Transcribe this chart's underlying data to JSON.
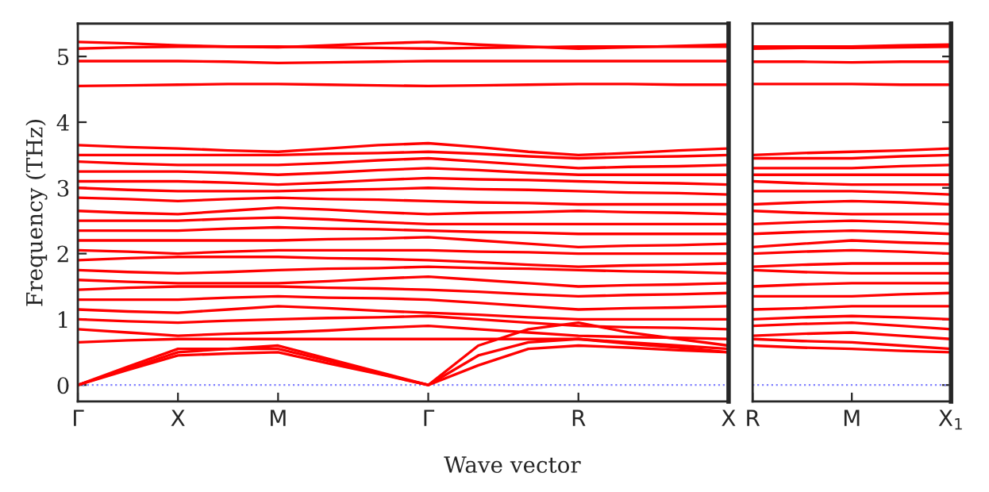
{
  "chart_data": [
    {
      "type": "line",
      "ylabel": "Frequency (THz)",
      "xlabel": "Wave vector",
      "categories": [
        "Γ",
        null,
        "X",
        null,
        "M",
        null,
        null,
        "Γ",
        null,
        null,
        "R",
        null,
        null,
        "X"
      ],
      "ylim": [
        -0.25,
        5.5
      ],
      "yticks": [
        0,
        1,
        2,
        3,
        4,
        5
      ],
      "line_style": "solid",
      "marker": "none",
      "ref_lines": [
        {
          "axis": "y",
          "value": 0,
          "color": "#8080ff",
          "line_style": "dotted"
        }
      ],
      "series": [
        {
          "color": "#ff0000",
          "values": [
            0,
            0.23,
            0.45,
            0.48,
            0.5,
            0.33,
            0.17,
            0,
            0.3,
            0.55,
            0.6,
            0.57,
            0.53,
            0.5
          ]
        },
        {
          "color": "#ff0000",
          "values": [
            0,
            0.28,
            0.55,
            0.55,
            0.55,
            0.37,
            0.18,
            0,
            0.45,
            0.65,
            0.7,
            0.65,
            0.6,
            0.55
          ]
        },
        {
          "color": "#ff0000",
          "values": [
            0,
            0.25,
            0.5,
            0.55,
            0.6,
            0.4,
            0.2,
            0,
            0.6,
            0.85,
            0.95,
            0.8,
            0.7,
            0.6
          ]
        },
        {
          "color": "#ff0000",
          "values": [
            0.65,
            0.68,
            0.7,
            0.7,
            0.7,
            0.7,
            0.7,
            0.7,
            0.7,
            0.7,
            0.7,
            0.63,
            0.57,
            0.5
          ]
        },
        {
          "color": "#ff0000",
          "values": [
            0.85,
            0.8,
            0.75,
            0.78,
            0.8,
            0.83,
            0.87,
            0.9,
            0.85,
            0.8,
            0.75,
            0.73,
            0.72,
            0.7
          ]
        },
        {
          "color": "#ff0000",
          "values": [
            1.0,
            0.97,
            0.95,
            0.98,
            1.0,
            1.02,
            1.03,
            1.05,
            1.0,
            0.95,
            0.9,
            0.88,
            0.87,
            0.85
          ]
        },
        {
          "color": "#ff0000",
          "values": [
            1.15,
            1.12,
            1.1,
            1.15,
            1.2,
            1.17,
            1.13,
            1.1,
            1.07,
            1.03,
            1.0,
            1.0,
            1.0,
            1.0
          ]
        },
        {
          "color": "#ff0000",
          "values": [
            1.3,
            1.3,
            1.3,
            1.33,
            1.35,
            1.33,
            1.32,
            1.3,
            1.25,
            1.2,
            1.15,
            1.17,
            1.18,
            1.2
          ]
        },
        {
          "color": "#ff0000",
          "values": [
            1.45,
            1.48,
            1.5,
            1.5,
            1.5,
            1.48,
            1.47,
            1.45,
            1.42,
            1.38,
            1.35,
            1.37,
            1.38,
            1.4
          ]
        },
        {
          "color": "#ff0000",
          "values": [
            1.6,
            1.57,
            1.55,
            1.55,
            1.55,
            1.58,
            1.62,
            1.65,
            1.6,
            1.55,
            1.5,
            1.52,
            1.53,
            1.55
          ]
        },
        {
          "color": "#ff0000",
          "values": [
            1.75,
            1.72,
            1.7,
            1.72,
            1.75,
            1.77,
            1.78,
            1.8,
            1.78,
            1.77,
            1.75,
            1.73,
            1.72,
            1.7
          ]
        },
        {
          "color": "#ff0000",
          "values": [
            1.9,
            1.93,
            1.95,
            1.95,
            1.95,
            1.93,
            1.92,
            1.9,
            1.87,
            1.83,
            1.8,
            1.82,
            1.83,
            1.85
          ]
        },
        {
          "color": "#ff0000",
          "values": [
            2.05,
            2.03,
            2.0,
            2.03,
            2.05,
            2.05,
            2.05,
            2.05,
            2.03,
            2.02,
            2.0,
            2.0,
            2.0,
            2.0
          ]
        },
        {
          "color": "#ff0000",
          "values": [
            2.2,
            2.2,
            2.2,
            2.2,
            2.2,
            2.22,
            2.23,
            2.25,
            2.2,
            2.15,
            2.1,
            2.12,
            2.13,
            2.15
          ]
        },
        {
          "color": "#ff0000",
          "values": [
            2.35,
            2.35,
            2.35,
            2.38,
            2.4,
            2.38,
            2.37,
            2.35,
            2.33,
            2.32,
            2.3,
            2.3,
            2.3,
            2.3
          ]
        },
        {
          "color": "#ff0000",
          "values": [
            2.5,
            2.5,
            2.5,
            2.53,
            2.55,
            2.52,
            2.48,
            2.45,
            2.45,
            2.45,
            2.45,
            2.45,
            2.45,
            2.45
          ]
        },
        {
          "color": "#ff0000",
          "values": [
            2.65,
            2.62,
            2.6,
            2.65,
            2.7,
            2.67,
            2.63,
            2.6,
            2.62,
            2.63,
            2.65,
            2.63,
            2.62,
            2.6
          ]
        },
        {
          "color": "#ff0000",
          "values": [
            2.85,
            2.83,
            2.8,
            2.83,
            2.85,
            2.83,
            2.82,
            2.8,
            2.78,
            2.77,
            2.75,
            2.75,
            2.75,
            2.75
          ]
        },
        {
          "color": "#ff0000",
          "values": [
            3.0,
            2.97,
            2.95,
            2.95,
            2.95,
            2.97,
            2.98,
            3.0,
            2.98,
            2.97,
            2.95,
            2.93,
            2.92,
            2.9
          ]
        },
        {
          "color": "#ff0000",
          "values": [
            3.1,
            3.1,
            3.1,
            3.08,
            3.05,
            3.08,
            3.12,
            3.15,
            3.13,
            3.12,
            3.1,
            3.08,
            3.07,
            3.05
          ]
        },
        {
          "color": "#ff0000",
          "values": [
            3.25,
            3.25,
            3.25,
            3.23,
            3.2,
            3.23,
            3.27,
            3.3,
            3.27,
            3.23,
            3.2,
            3.2,
            3.2,
            3.2
          ]
        },
        {
          "color": "#ff0000",
          "values": [
            3.4,
            3.37,
            3.35,
            3.35,
            3.35,
            3.38,
            3.42,
            3.45,
            3.4,
            3.35,
            3.3,
            3.32,
            3.33,
            3.35
          ]
        },
        {
          "color": "#ff0000",
          "values": [
            3.5,
            3.5,
            3.5,
            3.5,
            3.5,
            3.52,
            3.53,
            3.55,
            3.52,
            3.48,
            3.45,
            3.47,
            3.48,
            3.5
          ]
        },
        {
          "color": "#ff0000",
          "values": [
            3.65,
            3.62,
            3.6,
            3.57,
            3.55,
            3.6,
            3.65,
            3.68,
            3.62,
            3.55,
            3.5,
            3.53,
            3.57,
            3.6
          ]
        },
        {
          "color": "#ff0000",
          "values": [
            4.55,
            4.56,
            4.57,
            4.58,
            4.58,
            4.57,
            4.56,
            4.55,
            4.56,
            4.57,
            4.58,
            4.58,
            4.57,
            4.57
          ]
        },
        {
          "color": "#ff0000",
          "values": [
            4.93,
            4.93,
            4.93,
            4.92,
            4.9,
            4.91,
            4.92,
            4.93,
            4.93,
            4.93,
            4.93,
            4.93,
            4.93,
            4.93
          ]
        },
        {
          "color": "#ff0000",
          "values": [
            5.12,
            5.14,
            5.15,
            5.15,
            5.15,
            5.14,
            5.13,
            5.12,
            5.13,
            5.14,
            5.15,
            5.15,
            5.15,
            5.15
          ]
        },
        {
          "color": "#ff0000",
          "values": [
            5.22,
            5.2,
            5.17,
            5.15,
            5.14,
            5.17,
            5.2,
            5.22,
            5.18,
            5.15,
            5.12,
            5.14,
            5.16,
            5.18
          ]
        }
      ]
    },
    {
      "type": "line",
      "categories": [
        "R",
        null,
        "M",
        null,
        "X$_{1}$"
      ],
      "ylim": [
        -0.25,
        5.5
      ],
      "yticks": [
        0,
        1,
        2,
        3,
        4,
        5
      ],
      "tick_labels": "x",
      "line_style": "solid",
      "marker": "none",
      "ref_lines": [
        {
          "axis": "y",
          "value": 0,
          "color": "#8080ff",
          "line_style": "dotted"
        }
      ],
      "series": [
        {
          "color": "#ff0000",
          "values": [
            0.6,
            0.57,
            0.55,
            0.52,
            0.5
          ]
        },
        {
          "color": "#ff0000",
          "values": [
            0.7,
            0.67,
            0.65,
            0.6,
            0.55
          ]
        },
        {
          "color": "#ff0000",
          "values": [
            0.75,
            0.78,
            0.8,
            0.75,
            0.7
          ]
        },
        {
          "color": "#ff0000",
          "values": [
            0.9,
            0.93,
            0.95,
            0.9,
            0.85
          ]
        },
        {
          "color": "#ff0000",
          "values": [
            1.0,
            1.03,
            1.05,
            1.03,
            1.0
          ]
        },
        {
          "color": "#ff0000",
          "values": [
            1.15,
            1.17,
            1.2,
            1.2,
            1.2
          ]
        },
        {
          "color": "#ff0000",
          "values": [
            1.35,
            1.35,
            1.35,
            1.38,
            1.4
          ]
        },
        {
          "color": "#ff0000",
          "values": [
            1.5,
            1.53,
            1.55,
            1.55,
            1.55
          ]
        },
        {
          "color": "#ff0000",
          "values": [
            1.75,
            1.72,
            1.7,
            1.7,
            1.7
          ]
        },
        {
          "color": "#ff0000",
          "values": [
            1.8,
            1.83,
            1.85,
            1.85,
            1.85
          ]
        },
        {
          "color": "#ff0000",
          "values": [
            2.0,
            2.03,
            2.05,
            2.03,
            2.0
          ]
        },
        {
          "color": "#ff0000",
          "values": [
            2.1,
            2.15,
            2.2,
            2.17,
            2.15
          ]
        },
        {
          "color": "#ff0000",
          "values": [
            2.3,
            2.33,
            2.35,
            2.33,
            2.3
          ]
        },
        {
          "color": "#ff0000",
          "values": [
            2.45,
            2.48,
            2.5,
            2.48,
            2.45
          ]
        },
        {
          "color": "#ff0000",
          "values": [
            2.65,
            2.62,
            2.6,
            2.6,
            2.6
          ]
        },
        {
          "color": "#ff0000",
          "values": [
            2.75,
            2.78,
            2.8,
            2.78,
            2.75
          ]
        },
        {
          "color": "#ff0000",
          "values": [
            2.95,
            2.95,
            2.95,
            2.93,
            2.9
          ]
        },
        {
          "color": "#ff0000",
          "values": [
            3.1,
            3.07,
            3.05,
            3.05,
            3.05
          ]
        },
        {
          "color": "#ff0000",
          "values": [
            3.2,
            3.2,
            3.2,
            3.2,
            3.2
          ]
        },
        {
          "color": "#ff0000",
          "values": [
            3.3,
            3.3,
            3.3,
            3.33,
            3.35
          ]
        },
        {
          "color": "#ff0000",
          "values": [
            3.45,
            3.45,
            3.45,
            3.48,
            3.5
          ]
        },
        {
          "color": "#ff0000",
          "values": [
            3.5,
            3.53,
            3.55,
            3.57,
            3.6
          ]
        },
        {
          "color": "#ff0000",
          "values": [
            4.58,
            4.58,
            4.58,
            4.57,
            4.57
          ]
        },
        {
          "color": "#ff0000",
          "values": [
            4.92,
            4.92,
            4.91,
            4.92,
            4.92
          ]
        },
        {
          "color": "#ff0000",
          "values": [
            5.12,
            5.13,
            5.13,
            5.14,
            5.15
          ]
        },
        {
          "color": "#ff0000",
          "values": [
            5.15,
            5.15,
            5.15,
            5.17,
            5.18
          ]
        }
      ]
    }
  ]
}
